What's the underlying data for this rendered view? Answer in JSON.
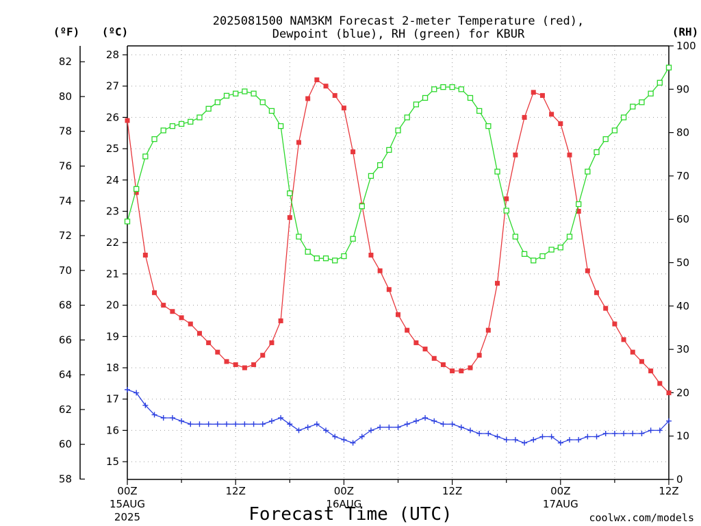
{
  "title_line1": "2025081500 NAM3KM Forecast 2-meter Temperature (red),",
  "title_line2": "Dewpoint (blue), RH (green) for KBUR",
  "unit_f": "(ºF)",
  "unit_c": "(ºC)",
  "unit_rh": "(RH)",
  "x_axis_title": "Forecast Time (UTC)",
  "credit": "coolwx.com/models",
  "colors": {
    "temperature": "#e8383d",
    "dewpoint": "#2b3fe0",
    "rh": "#2ad82a",
    "credit": "#e8383d"
  },
  "chart_data": {
    "type": "line",
    "title": "2025081500 NAM3KM Forecast 2-meter Temperature (red), Dewpoint (blue), RH (green) for KBUR",
    "xlabel": "Forecast Time (UTC)",
    "x_unit": "forecast hour",
    "xlim": [
      0,
      60
    ],
    "x_ticks": [
      {
        "hour": 0,
        "lines": [
          "00Z",
          "15AUG",
          "2025"
        ]
      },
      {
        "hour": 12,
        "lines": [
          "12Z"
        ]
      },
      {
        "hour": 24,
        "lines": [
          "00Z",
          "16AUG"
        ]
      },
      {
        "hour": 36,
        "lines": [
          "12Z"
        ]
      },
      {
        "hour": 48,
        "lines": [
          "00Z",
          "17AUG"
        ]
      },
      {
        "hour": 60,
        "lines": [
          "12Z"
        ]
      }
    ],
    "axes": {
      "celsius": {
        "label": "(ºC)",
        "ticks": [
          15,
          16,
          17,
          18,
          19,
          20,
          21,
          22,
          23,
          24,
          25,
          26,
          27,
          28
        ]
      },
      "fahrenheit": {
        "label": "(ºF)",
        "ticks": [
          58,
          60,
          62,
          64,
          66,
          68,
          70,
          72,
          74,
          76,
          78,
          80,
          82
        ]
      },
      "rh": {
        "label": "(RH)",
        "ylim": [
          0,
          100
        ],
        "ticks": [
          0,
          10,
          20,
          30,
          40,
          50,
          60,
          70,
          80,
          90,
          100
        ]
      }
    },
    "grid": true,
    "series": [
      {
        "key": "temperature",
        "axis": "celsius",
        "marker": "filled-square",
        "x": [
          0,
          1,
          2,
          3,
          4,
          5,
          6,
          7,
          8,
          9,
          10,
          11,
          12,
          13,
          14,
          15,
          16,
          17,
          18,
          19,
          20,
          21,
          22,
          23,
          24,
          25,
          26,
          27,
          28,
          29,
          30,
          31,
          32,
          33,
          34,
          35,
          36,
          37,
          38,
          39,
          40,
          41,
          42,
          43,
          44,
          45,
          46,
          47,
          48,
          49,
          50,
          51,
          52,
          53,
          54,
          55,
          56,
          57,
          58,
          59,
          60
        ],
        "values": [
          25.9,
          23.6,
          21.6,
          20.4,
          20.0,
          19.8,
          19.6,
          19.4,
          19.1,
          18.8,
          18.5,
          18.2,
          18.1,
          18.0,
          18.1,
          18.4,
          18.8,
          19.5,
          22.8,
          25.2,
          26.6,
          27.2,
          27.0,
          26.7,
          26.3,
          24.9,
          23.2,
          21.6,
          21.1,
          20.5,
          19.7,
          19.2,
          18.8,
          18.6,
          18.3,
          18.1,
          17.9,
          17.9,
          18.0,
          18.4,
          19.2,
          20.7,
          23.4,
          24.8,
          26.0,
          26.8,
          26.7,
          26.1,
          25.8,
          24.8,
          23.0,
          21.1,
          20.4,
          19.9,
          19.4,
          18.9,
          18.5,
          18.2,
          17.9,
          17.5,
          17.2
        ]
      },
      {
        "key": "dewpoint",
        "axis": "celsius",
        "marker": "plus",
        "x": [
          0,
          1,
          2,
          3,
          4,
          5,
          6,
          7,
          8,
          9,
          10,
          11,
          12,
          13,
          14,
          15,
          16,
          17,
          18,
          19,
          20,
          21,
          22,
          23,
          24,
          25,
          26,
          27,
          28,
          29,
          30,
          31,
          32,
          33,
          34,
          35,
          36,
          37,
          38,
          39,
          40,
          41,
          42,
          43,
          44,
          45,
          46,
          47,
          48,
          49,
          50,
          51,
          52,
          53,
          54,
          55,
          56,
          57,
          58,
          59,
          60
        ],
        "values": [
          17.3,
          17.2,
          16.8,
          16.5,
          16.4,
          16.4,
          16.3,
          16.2,
          16.2,
          16.2,
          16.2,
          16.2,
          16.2,
          16.2,
          16.2,
          16.2,
          16.3,
          16.4,
          16.2,
          16.0,
          16.1,
          16.2,
          16.0,
          15.8,
          15.7,
          15.6,
          15.8,
          16.0,
          16.1,
          16.1,
          16.1,
          16.2,
          16.3,
          16.4,
          16.3,
          16.2,
          16.2,
          16.1,
          16.0,
          15.9,
          15.9,
          15.8,
          15.7,
          15.7,
          15.6,
          15.7,
          15.8,
          15.8,
          15.6,
          15.7,
          15.7,
          15.8,
          15.8,
          15.9,
          15.9,
          15.9,
          15.9,
          15.9,
          16.0,
          16.0,
          16.3
        ]
      },
      {
        "key": "rh",
        "axis": "rh",
        "marker": "open-square",
        "x": [
          0,
          1,
          2,
          3,
          4,
          5,
          6,
          7,
          8,
          9,
          10,
          11,
          12,
          13,
          14,
          15,
          16,
          17,
          18,
          19,
          20,
          21,
          22,
          23,
          24,
          25,
          26,
          27,
          28,
          29,
          30,
          31,
          32,
          33,
          34,
          35,
          36,
          37,
          38,
          39,
          40,
          41,
          42,
          43,
          44,
          45,
          46,
          47,
          48,
          49,
          50,
          51,
          52,
          53,
          54,
          55,
          56,
          57,
          58,
          59,
          60
        ],
        "values": [
          59.5,
          67.0,
          74.5,
          78.5,
          80.5,
          81.5,
          82.0,
          82.5,
          83.5,
          85.5,
          87.0,
          88.5,
          89.0,
          89.5,
          89.0,
          87.0,
          85.0,
          81.5,
          66.0,
          56.0,
          52.5,
          51.0,
          51.0,
          50.5,
          51.5,
          55.5,
          63.0,
          70.0,
          72.5,
          76.0,
          80.5,
          83.5,
          86.5,
          88.0,
          90.0,
          90.5,
          90.5,
          90.0,
          88.0,
          85.0,
          81.5,
          71.0,
          62.0,
          56.0,
          52.0,
          50.5,
          51.5,
          53.0,
          53.5,
          56.0,
          63.5,
          71.0,
          75.5,
          78.5,
          80.5,
          83.5,
          86.0,
          87.0,
          89.0,
          91.5,
          95.0
        ]
      }
    ]
  }
}
